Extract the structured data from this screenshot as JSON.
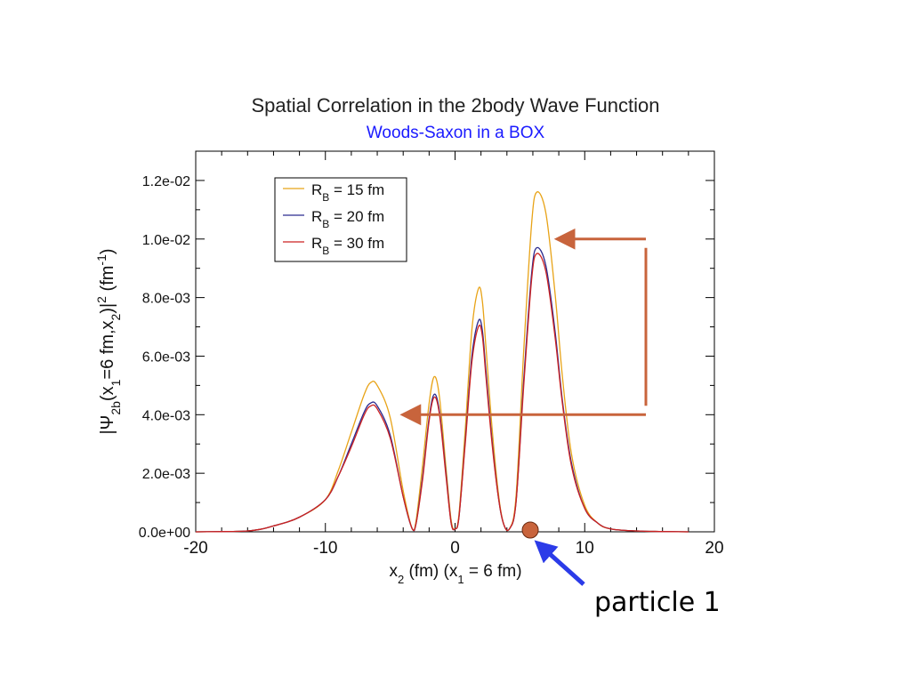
{
  "chart_data": {
    "type": "line",
    "title": "Spatial Correlation in the 2body Wave Function",
    "subtitle": "Woods-Saxon in a BOX",
    "xlabel": {
      "main": "x",
      "sub": "2",
      "rest": " (fm) (x",
      "sub2": "1",
      "rest2": " = 6 fm)"
    },
    "ylabel": {
      "pre": "|Ψ",
      "sub1": "2b",
      "mid": "(x",
      "sub2": "1",
      "mid2": "=6 fm,x",
      "sub3": "2",
      "mid3": ")|",
      "sup1": "2",
      "mid4": " (fm",
      "sup2": "-1",
      "end": ")"
    },
    "xlim": [
      -20,
      20
    ],
    "ylim": [
      0,
      0.013
    ],
    "x_ticks": [
      -20,
      -10,
      0,
      10,
      20
    ],
    "x_tick_labels": [
      "-20",
      "-10",
      "0",
      "10",
      "20"
    ],
    "y_ticks": [
      0,
      0.002,
      0.004,
      0.006,
      0.008,
      0.01,
      0.012
    ],
    "y_tick_labels": [
      "0.0e+00",
      "2.0e-03",
      "4.0e-03",
      "6.0e-03",
      "8.0e-03",
      "1.0e-02",
      "1.2e-02"
    ],
    "legend_position": "top-left",
    "series": [
      {
        "name": "15",
        "color": "#E8A317",
        "x": [
          -20,
          -16,
          -14,
          -12,
          -10,
          -9,
          -8,
          -7,
          -6.5,
          -6,
          -5,
          -4,
          -3.3,
          -3,
          -2.5,
          -2,
          -1.6,
          -1.2,
          -0.7,
          -0.3,
          0,
          0.3,
          0.8,
          1.3,
          1.8,
          2.1,
          2.4,
          2.9,
          3.4,
          3.8,
          4.2,
          4.7,
          5.3,
          5.9,
          6.3,
          7,
          7.7,
          8.3,
          9,
          10,
          11,
          12,
          14,
          16,
          18
        ],
        "y": [
          0,
          3e-05,
          0.0002,
          0.0005,
          0.0011,
          0.0021,
          0.0034,
          0.0047,
          0.0051,
          0.005,
          0.0039,
          0.0014,
          0.0001,
          0.0004,
          0.0023,
          0.0044,
          0.0053,
          0.0046,
          0.0022,
          0.0004,
          0.0001,
          0.0006,
          0.0036,
          0.0069,
          0.0083,
          0.0079,
          0.0062,
          0.0033,
          0.0011,
          0.0002,
          0.0001,
          0.0012,
          0.0062,
          0.0105,
          0.0116,
          0.0109,
          0.0082,
          0.0052,
          0.0026,
          0.0009,
          0.0003,
          0.0001,
          3e-05,
          1e-05,
          0
        ]
      },
      {
        "name": "20",
        "color": "#2B2B8F",
        "x": [
          -20,
          -16,
          -14,
          -12,
          -10,
          -9,
          -8,
          -7,
          -6.5,
          -6,
          -5,
          -4,
          -3.3,
          -3,
          -2.5,
          -2,
          -1.6,
          -1.2,
          -0.7,
          -0.3,
          0,
          0.3,
          0.8,
          1.3,
          1.8,
          2.1,
          2.4,
          2.9,
          3.4,
          3.8,
          4.2,
          4.7,
          5.3,
          5.9,
          6.3,
          7,
          7.7,
          8.3,
          9,
          10,
          11,
          12,
          14,
          16,
          18
        ],
        "y": [
          0,
          3e-05,
          0.0002,
          0.0005,
          0.0011,
          0.0019,
          0.003,
          0.0041,
          0.0044,
          0.0043,
          0.0033,
          0.0012,
          0.0001,
          0.0003,
          0.0019,
          0.0039,
          0.0047,
          0.0041,
          0.002,
          0.0003,
          0.0001,
          0.0005,
          0.0032,
          0.006,
          0.0072,
          0.0069,
          0.0054,
          0.0029,
          0.001,
          0.0002,
          0.0001,
          0.001,
          0.0052,
          0.0088,
          0.0097,
          0.0091,
          0.0069,
          0.0044,
          0.0023,
          0.0008,
          0.0003,
          0.0001,
          3e-05,
          1e-05,
          0
        ]
      },
      {
        "name": "30",
        "color": "#CC2222",
        "x": [
          -20,
          -16,
          -14,
          -12,
          -10,
          -9,
          -8,
          -7,
          -6.5,
          -6,
          -5,
          -4,
          -3.3,
          -3,
          -2.5,
          -2,
          -1.6,
          -1.2,
          -0.7,
          -0.3,
          0,
          0.3,
          0.8,
          1.3,
          1.8,
          2.1,
          2.4,
          2.9,
          3.4,
          3.8,
          4.2,
          4.7,
          5.3,
          5.9,
          6.3,
          7,
          7.7,
          8.3,
          9,
          10,
          11,
          12,
          14,
          16,
          18
        ],
        "y": [
          0,
          3e-05,
          0.0002,
          0.0005,
          0.0011,
          0.0019,
          0.0029,
          0.004,
          0.0043,
          0.0042,
          0.0032,
          0.0012,
          0.0001,
          0.0003,
          0.0018,
          0.0038,
          0.0046,
          0.004,
          0.0019,
          0.0003,
          0.0001,
          0.0005,
          0.0031,
          0.0058,
          0.007,
          0.0067,
          0.0052,
          0.0028,
          0.001,
          0.0002,
          0.0001,
          0.001,
          0.005,
          0.0086,
          0.0095,
          0.0089,
          0.0067,
          0.0043,
          0.0022,
          0.0008,
          0.0003,
          0.0001,
          3e-05,
          1e-05,
          0
        ]
      }
    ],
    "legend_label_pre": "R",
    "legend_label_sub": "B",
    "legend_label_mid": " = ",
    "legend_label_unit": " fm",
    "annotations": {
      "particle_label": "particle 1",
      "particle_x": 5.8,
      "particle_color": "#C8643C",
      "arrow_color": "#C8643C",
      "pointer_color": "#2B3BE8",
      "arrow_top_target": [
        7.7,
        0.01
      ],
      "arrow_bottom_target": [
        -4.2,
        0.004
      ]
    }
  }
}
